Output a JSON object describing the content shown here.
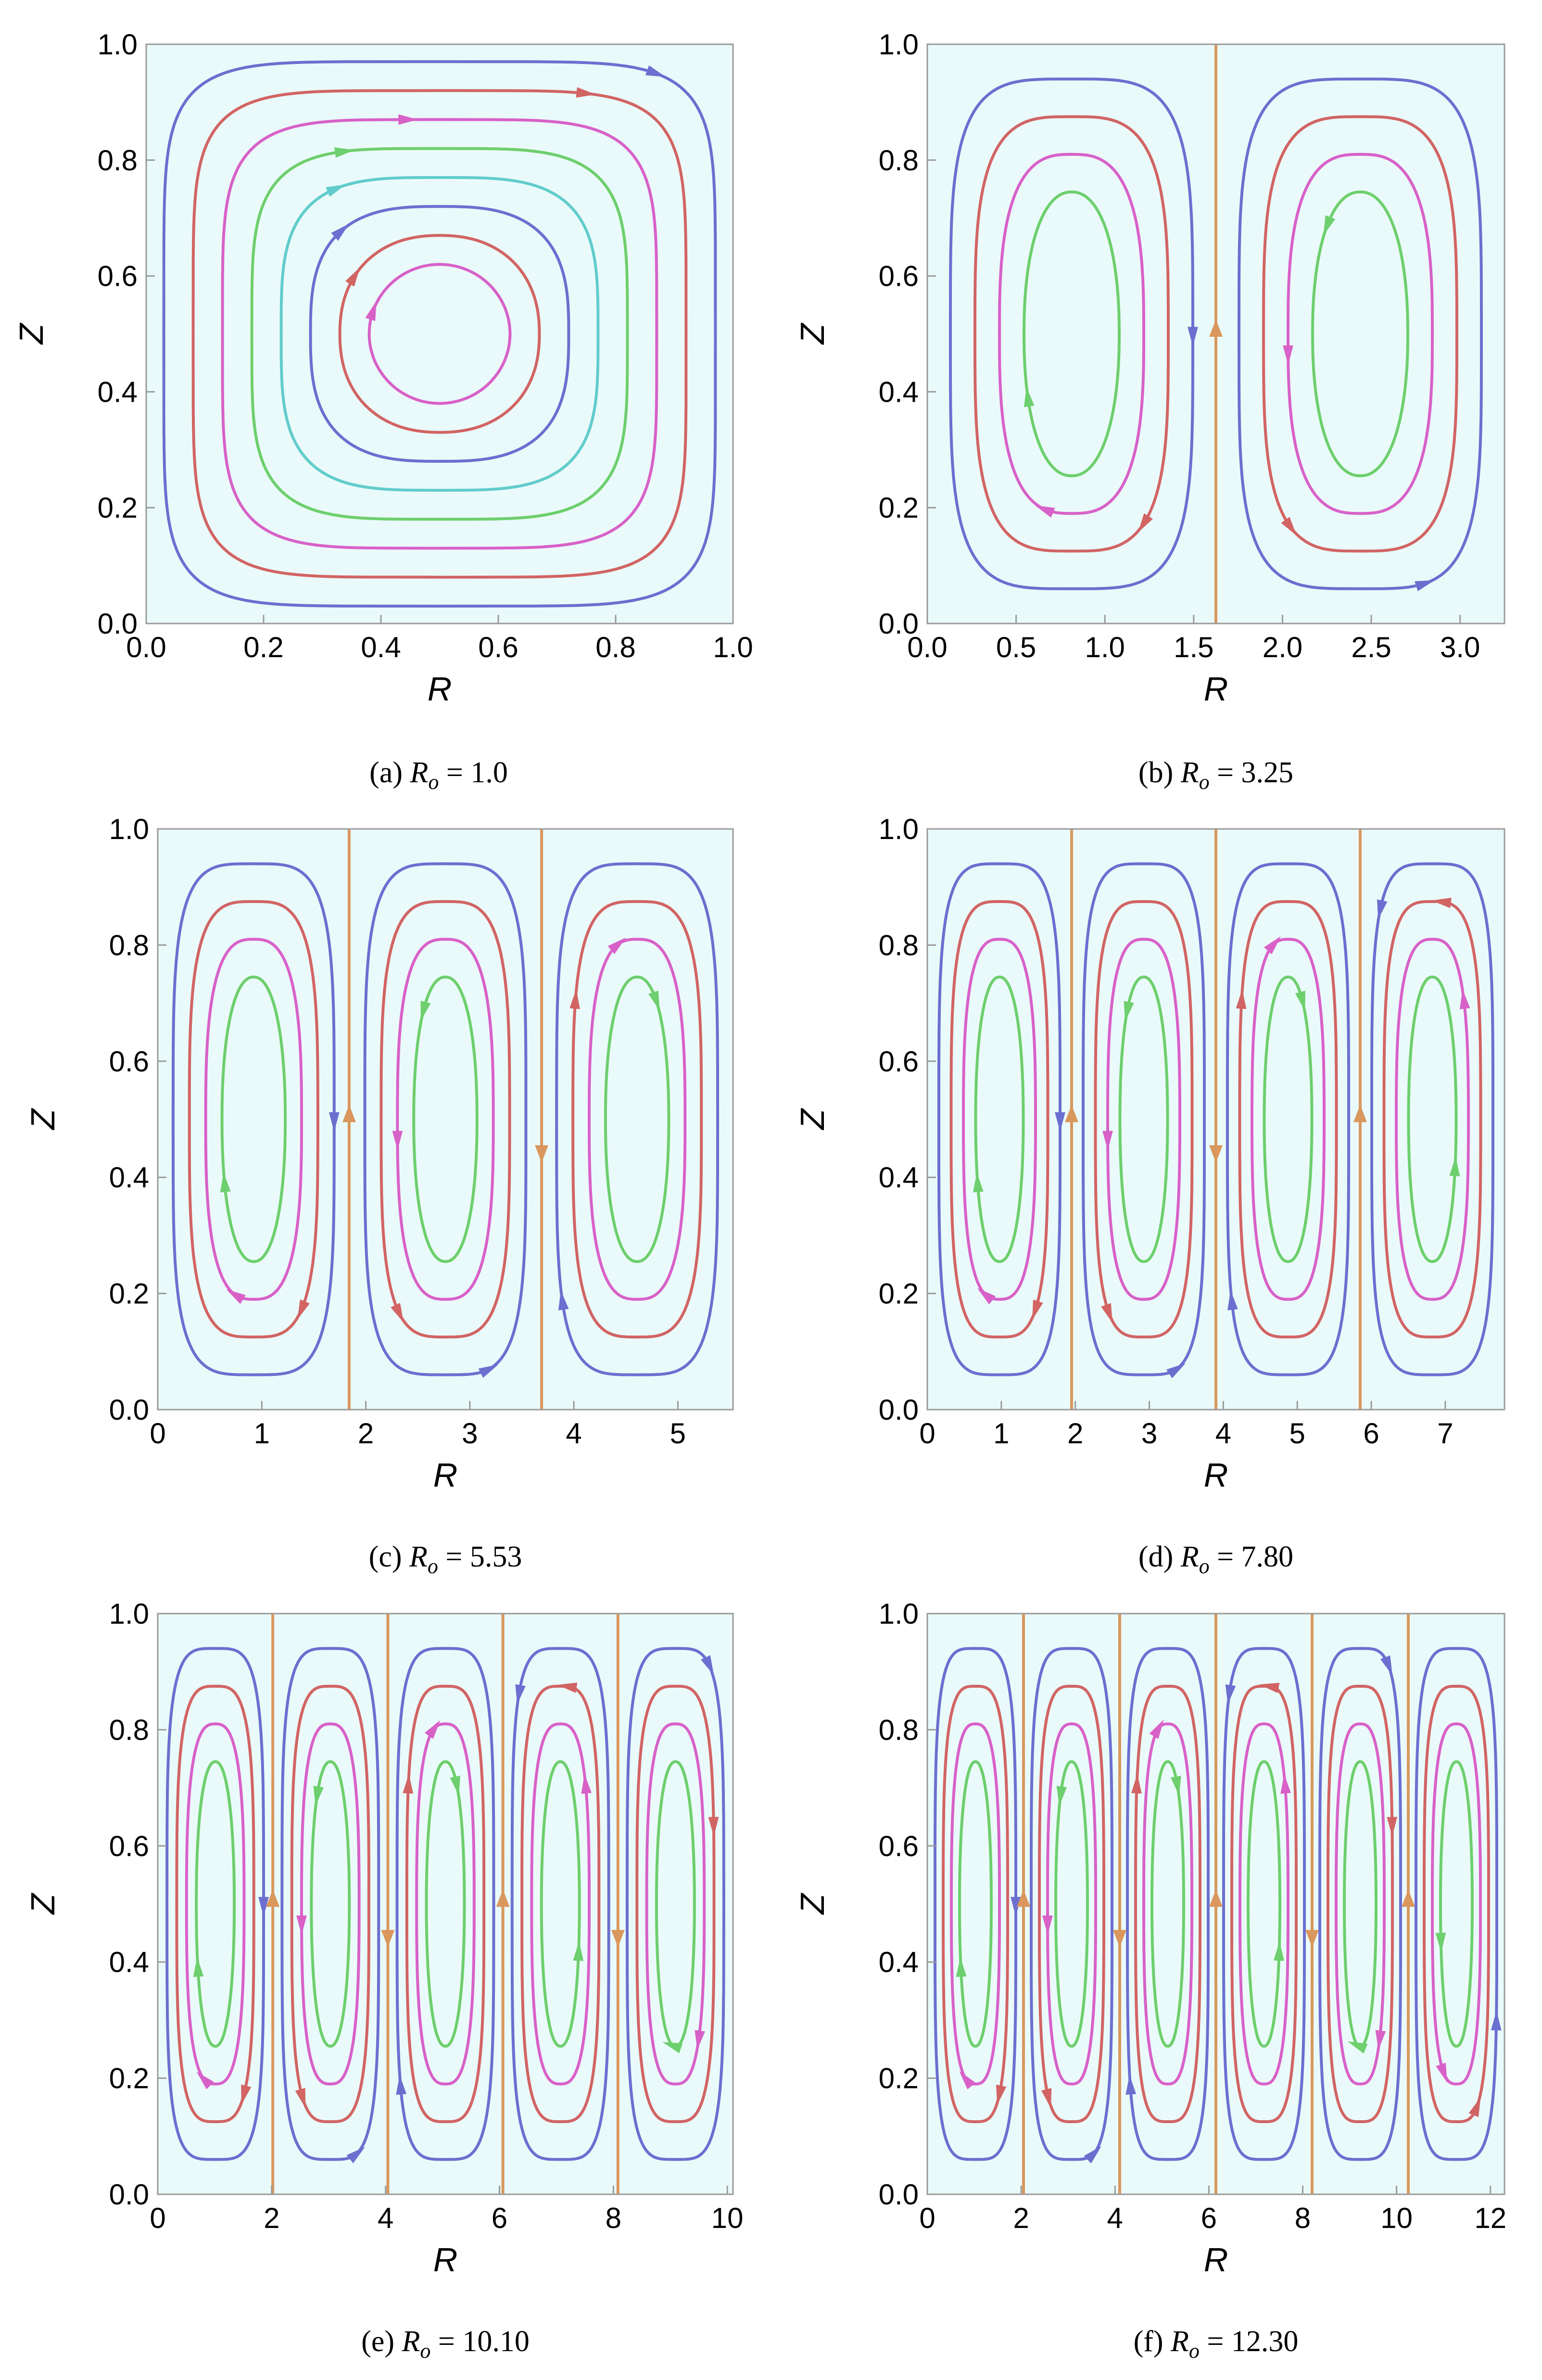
{
  "colors": {
    "background": "#eafafa",
    "streamlines": [
      "#6b6fd0",
      "#d26464",
      "#d861c8",
      "#6dcf6d",
      "#62cccc",
      "#d9975d"
    ],
    "separatrix": "#d9975d"
  },
  "chart_data": [
    {
      "type": "streamplot",
      "caption_label": "(a)",
      "caption_symbol": "R",
      "caption_sub": "o",
      "caption_value": "= 1.0",
      "xlabel": "R",
      "ylabel": "Z",
      "xlim": [
        0,
        1.0
      ],
      "ylim": [
        0,
        1.0
      ],
      "xticks": [
        "0.0",
        "0.2",
        "0.4",
        "0.6",
        "0.8",
        "1.0"
      ],
      "yticks": [
        "0.0",
        "0.2",
        "0.4",
        "0.6",
        "0.8",
        "1.0"
      ],
      "cells": 1,
      "separatrices": [],
      "grid": false
    },
    {
      "type": "streamplot",
      "caption_label": "(b)",
      "caption_symbol": "R",
      "caption_sub": "o",
      "caption_value": "= 3.25",
      "xlabel": "R",
      "ylabel": "Z",
      "xlim": [
        0,
        3.25
      ],
      "ylim": [
        0,
        1.0
      ],
      "xticks": [
        "0.0",
        "0.5",
        "1.0",
        "1.5",
        "2.0",
        "2.5",
        "3.0"
      ],
      "yticks": [
        "0.0",
        "0.2",
        "0.4",
        "0.6",
        "0.8",
        "1.0"
      ],
      "cells": 2,
      "separatrices": [
        1.625
      ],
      "grid": false
    },
    {
      "type": "streamplot",
      "caption_label": "(c)",
      "caption_symbol": "R",
      "caption_sub": "o",
      "caption_value": "= 5.53",
      "xlabel": "R",
      "ylabel": "Z",
      "xlim": [
        0,
        5.53
      ],
      "ylim": [
        0,
        1.0
      ],
      "xticks": [
        "0",
        "1",
        "2",
        "3",
        "4",
        "5"
      ],
      "yticks": [
        "0.0",
        "0.2",
        "0.4",
        "0.6",
        "0.8",
        "1.0"
      ],
      "cells": 3,
      "separatrices": [
        1.84,
        3.69
      ],
      "grid": false
    },
    {
      "type": "streamplot",
      "caption_label": "(d)",
      "caption_symbol": "R",
      "caption_sub": "o",
      "caption_value": "= 7.80",
      "xlabel": "R",
      "ylabel": "Z",
      "xlim": [
        0,
        7.8
      ],
      "ylim": [
        0,
        1.0
      ],
      "xticks": [
        "0",
        "1",
        "2",
        "3",
        "4",
        "5",
        "6",
        "7"
      ],
      "yticks": [
        "0.0",
        "0.2",
        "0.4",
        "0.6",
        "0.8",
        "1.0"
      ],
      "cells": 4,
      "separatrices": [
        1.95,
        3.9,
        5.85
      ],
      "grid": false
    },
    {
      "type": "streamplot",
      "caption_label": "(e)",
      "caption_symbol": "R",
      "caption_sub": "o",
      "caption_value": "= 10.10",
      "xlabel": "R",
      "ylabel": "Z",
      "xlim": [
        0,
        10.1
      ],
      "ylim": [
        0,
        1.0
      ],
      "xticks": [
        "0",
        "2",
        "4",
        "6",
        "8",
        "10"
      ],
      "yticks": [
        "0.0",
        "0.2",
        "0.4",
        "0.6",
        "0.8",
        "1.0"
      ],
      "cells": 5,
      "separatrices": [
        2.02,
        4.04,
        6.06,
        8.08
      ],
      "grid": false
    },
    {
      "type": "streamplot",
      "caption_label": "(f)",
      "caption_symbol": "R",
      "caption_sub": "o",
      "caption_value": "= 12.30",
      "xlabel": "R",
      "ylabel": "Z",
      "xlim": [
        0,
        12.3
      ],
      "ylim": [
        0,
        1.0
      ],
      "xticks": [
        "0",
        "2",
        "4",
        "6",
        "8",
        "10",
        "12"
      ],
      "yticks": [
        "0.0",
        "0.2",
        "0.4",
        "0.6",
        "0.8",
        "1.0"
      ],
      "cells": 6,
      "separatrices": [
        2.05,
        4.1,
        6.15,
        8.2,
        10.25
      ],
      "grid": false
    }
  ]
}
